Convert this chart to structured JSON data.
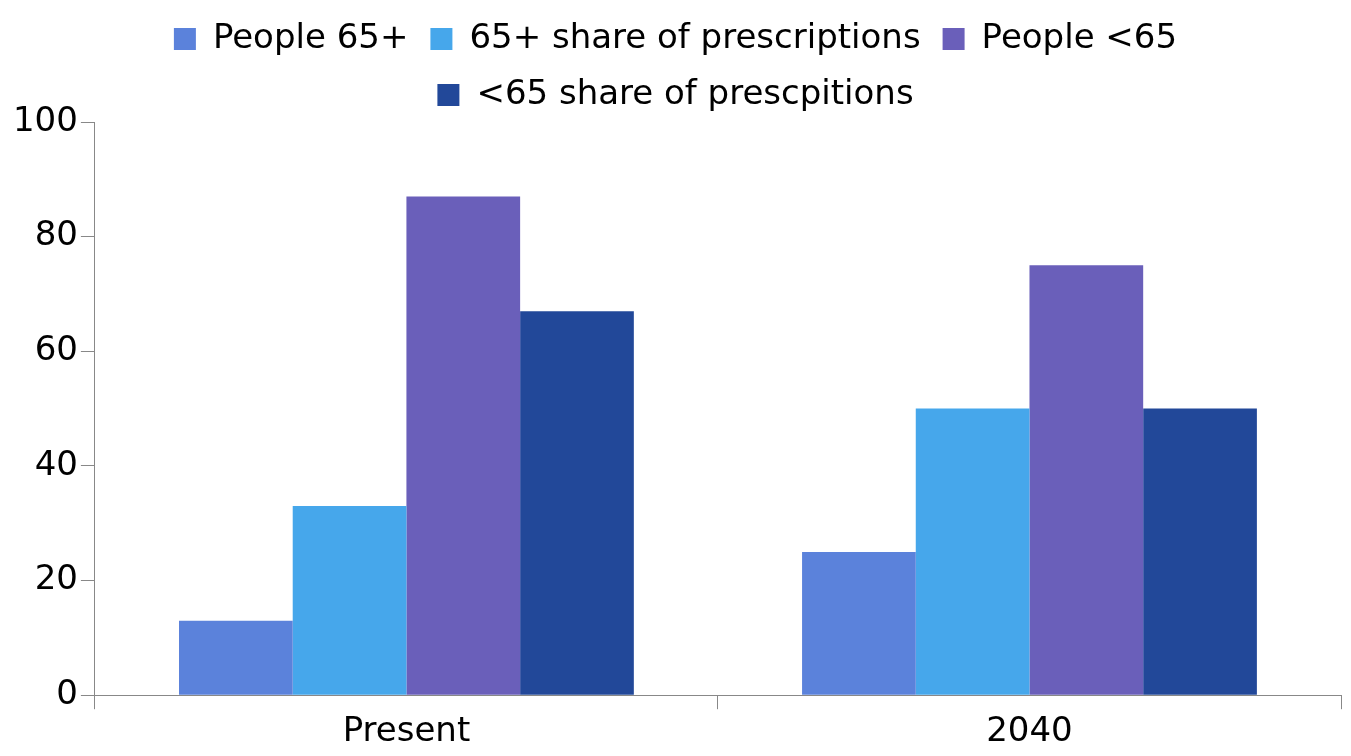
{
  "chart_data": {
    "type": "bar",
    "categories": [
      "Present",
      "2040"
    ],
    "series": [
      {
        "name": "People 65+",
        "color": "#5b82db",
        "values": [
          13,
          25
        ]
      },
      {
        "name": "65+ share of prescriptions",
        "color": "#46a7eb",
        "values": [
          33,
          50
        ]
      },
      {
        "name": "People <65",
        "color": "#6a5fba",
        "values": [
          87,
          75
        ]
      },
      {
        "name": "<65 share of prescpitions",
        "color": "#224899",
        "values": [
          67,
          50
        ]
      }
    ],
    "ylim": [
      0,
      100
    ],
    "yticks": [
      0,
      20,
      40,
      60,
      80,
      100
    ],
    "grid": false,
    "legend": "top"
  }
}
